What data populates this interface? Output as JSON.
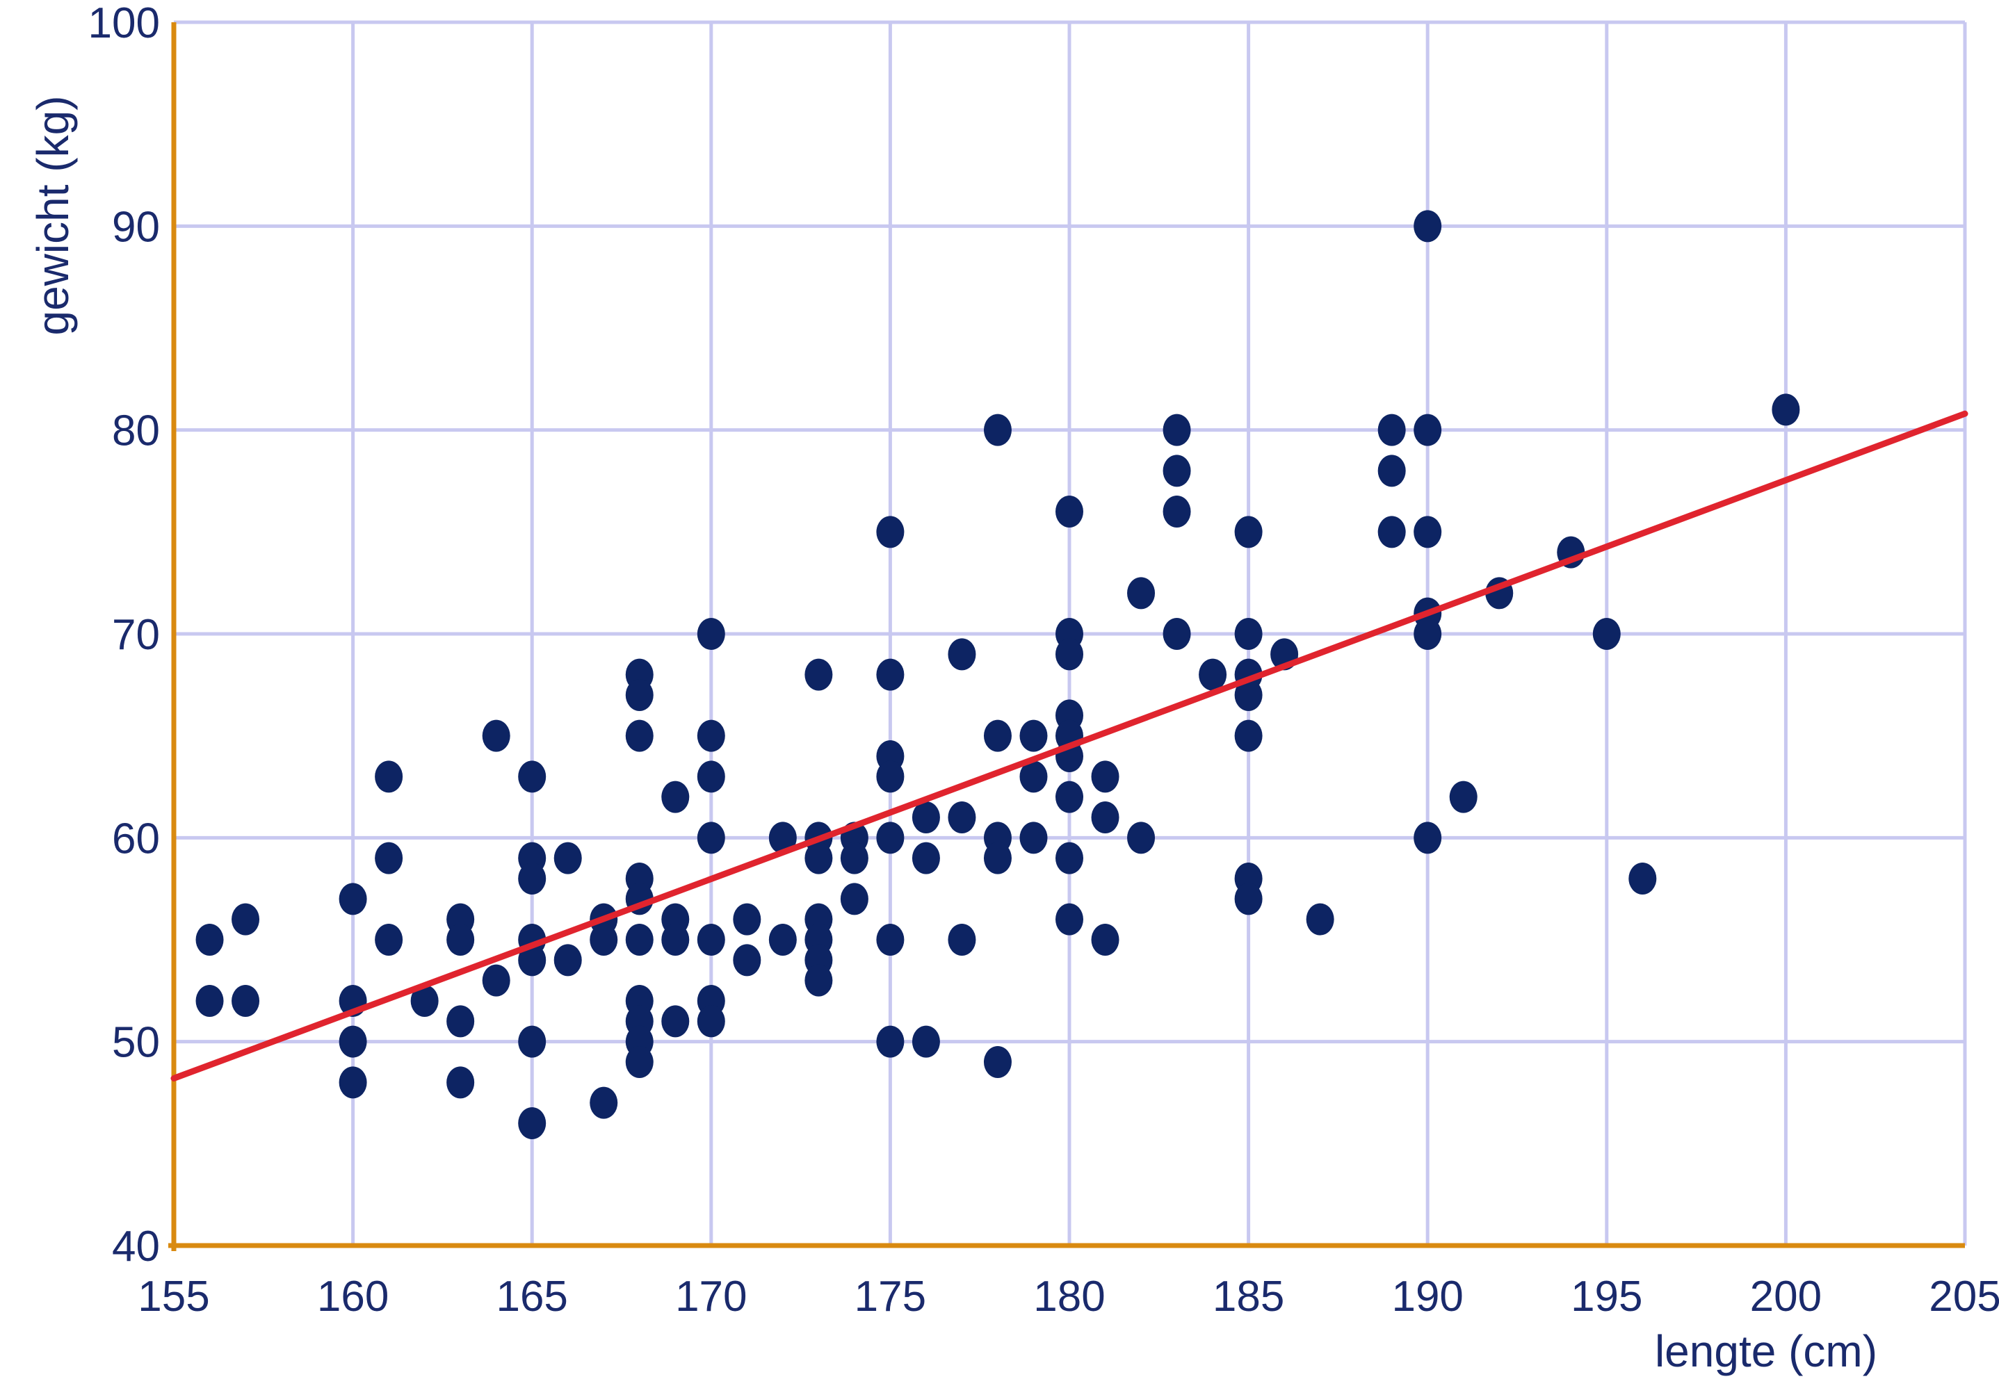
{
  "chart_data": {
    "type": "scatter",
    "xlabel": "lengte (cm)",
    "ylabel": "gewicht (kg)",
    "xlim": [
      155,
      205
    ],
    "ylim": [
      40,
      100
    ],
    "xticks": [
      155,
      160,
      165,
      170,
      175,
      180,
      185,
      190,
      195,
      200,
      205
    ],
    "yticks": [
      40,
      50,
      60,
      70,
      80,
      90,
      100
    ],
    "x_tick_labels": [
      "155",
      "160",
      "165",
      "170",
      "175",
      "180",
      "185",
      "190",
      "195",
      "200",
      "205"
    ],
    "y_tick_labels": [
      "40",
      "50",
      "60",
      "70",
      "80",
      "90",
      "100"
    ],
    "grid": true,
    "colors": {
      "points": "#0d2463",
      "trendline": "#e0242e",
      "axes": "#d98a10",
      "grid": "#c8c8f0",
      "text": "#1a2a6c"
    },
    "points": [
      [
        156,
        55
      ],
      [
        156,
        52
      ],
      [
        157,
        56
      ],
      [
        157,
        52
      ],
      [
        160,
        57
      ],
      [
        160,
        52
      ],
      [
        160,
        50
      ],
      [
        160,
        48
      ],
      [
        161,
        63
      ],
      [
        161,
        59
      ],
      [
        161,
        55
      ],
      [
        162,
        52
      ],
      [
        163,
        56
      ],
      [
        163,
        55
      ],
      [
        163,
        51
      ],
      [
        163,
        48
      ],
      [
        164,
        65
      ],
      [
        164,
        53
      ],
      [
        165,
        63
      ],
      [
        165,
        59
      ],
      [
        165,
        58
      ],
      [
        165,
        55
      ],
      [
        165,
        54
      ],
      [
        165,
        50
      ],
      [
        165,
        46
      ],
      [
        166,
        59
      ],
      [
        166,
        54
      ],
      [
        167,
        56
      ],
      [
        167,
        55
      ],
      [
        167,
        47
      ],
      [
        168,
        68
      ],
      [
        168,
        67
      ],
      [
        168,
        65
      ],
      [
        168,
        58
      ],
      [
        168,
        57
      ],
      [
        168,
        55
      ],
      [
        168,
        52
      ],
      [
        168,
        51
      ],
      [
        168,
        50
      ],
      [
        168,
        49
      ],
      [
        169,
        62
      ],
      [
        169,
        56
      ],
      [
        169,
        55
      ],
      [
        169,
        51
      ],
      [
        170,
        70
      ],
      [
        170,
        65
      ],
      [
        170,
        63
      ],
      [
        170,
        60
      ],
      [
        170,
        55
      ],
      [
        170,
        52
      ],
      [
        170,
        51
      ],
      [
        171,
        56
      ],
      [
        171,
        54
      ],
      [
        172,
        60
      ],
      [
        172,
        55
      ],
      [
        173,
        68
      ],
      [
        173,
        60
      ],
      [
        173,
        59
      ],
      [
        173,
        56
      ],
      [
        173,
        55
      ],
      [
        173,
        54
      ],
      [
        173,
        53
      ],
      [
        174,
        60
      ],
      [
        174,
        59
      ],
      [
        174,
        57
      ],
      [
        175,
        75
      ],
      [
        175,
        68
      ],
      [
        175,
        64
      ],
      [
        175,
        63
      ],
      [
        175,
        60
      ],
      [
        175,
        55
      ],
      [
        175,
        50
      ],
      [
        176,
        61
      ],
      [
        176,
        59
      ],
      [
        176,
        50
      ],
      [
        177,
        69
      ],
      [
        177,
        61
      ],
      [
        177,
        55
      ],
      [
        178,
        80
      ],
      [
        178,
        65
      ],
      [
        178,
        60
      ],
      [
        178,
        59
      ],
      [
        178,
        49
      ],
      [
        179,
        65
      ],
      [
        179,
        63
      ],
      [
        179,
        60
      ],
      [
        180,
        76
      ],
      [
        180,
        70
      ],
      [
        180,
        69
      ],
      [
        180,
        66
      ],
      [
        180,
        65
      ],
      [
        180,
        64
      ],
      [
        180,
        62
      ],
      [
        180,
        59
      ],
      [
        180,
        56
      ],
      [
        181,
        63
      ],
      [
        181,
        61
      ],
      [
        181,
        55
      ],
      [
        182,
        72
      ],
      [
        182,
        60
      ],
      [
        183,
        80
      ],
      [
        183,
        78
      ],
      [
        183,
        76
      ],
      [
        183,
        70
      ],
      [
        184,
        68
      ],
      [
        185,
        75
      ],
      [
        185,
        70
      ],
      [
        185,
        68
      ],
      [
        185,
        67
      ],
      [
        185,
        65
      ],
      [
        185,
        58
      ],
      [
        185,
        57
      ],
      [
        186,
        69
      ],
      [
        187,
        56
      ],
      [
        189,
        80
      ],
      [
        189,
        78
      ],
      [
        189,
        75
      ],
      [
        190,
        90
      ],
      [
        190,
        80
      ],
      [
        190,
        75
      ],
      [
        190,
        71
      ],
      [
        190,
        70
      ],
      [
        190,
        60
      ],
      [
        191,
        62
      ],
      [
        192,
        72
      ],
      [
        194,
        74
      ],
      [
        195,
        70
      ],
      [
        196,
        58
      ],
      [
        200,
        81
      ]
    ],
    "trendline": {
      "x": [
        155,
        205
      ],
      "y": [
        48.2,
        80.8
      ]
    }
  }
}
